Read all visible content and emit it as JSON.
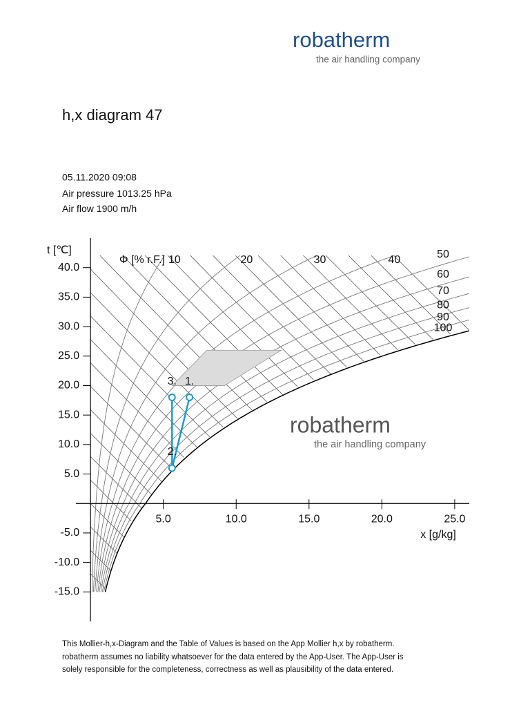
{
  "header": {
    "logo": "robatherm",
    "tagline": "the air handling company"
  },
  "document": {
    "title": "h,x diagram 47",
    "date": "05.11.2020 09:08",
    "air_pressure": {
      "label": "Air pressure",
      "value": 1013.25,
      "unit": "hPa"
    },
    "air_flow": {
      "label": "Air flow",
      "value": 1900,
      "unit": "m/h"
    }
  },
  "chart_data": {
    "type": "mollier",
    "y_label": "t [℃]",
    "x_label": "x [g/kg]",
    "rh_label": "Φ [% r.F.]",
    "rh_values": [
      10,
      20,
      30,
      40,
      50,
      60,
      70,
      80,
      90,
      100
    ],
    "xlim": [
      -1,
      26
    ],
    "ylim": [
      -20,
      45
    ],
    "xticks": [
      {
        "value": 5,
        "label": "5.0"
      },
      {
        "value": 10,
        "label": "10.0"
      },
      {
        "value": 15,
        "label": "15.0"
      },
      {
        "value": 20,
        "label": "20.0"
      },
      {
        "value": 25,
        "label": "25.0"
      }
    ],
    "yticks": [
      {
        "value": 40,
        "label": "40.0"
      },
      {
        "value": 35,
        "label": "35.0"
      },
      {
        "value": 30,
        "label": "30.0"
      },
      {
        "value": 25,
        "label": "25.0"
      },
      {
        "value": 20,
        "label": "20.0"
      },
      {
        "value": 15,
        "label": "15.0"
      },
      {
        "value": 10,
        "label": "10.0"
      },
      {
        "value": 5,
        "label": "5.0"
      },
      {
        "value": -5,
        "label": "-5.0"
      },
      {
        "value": -10,
        "label": "-10.0"
      },
      {
        "value": -15,
        "label": "-15.0"
      }
    ],
    "comfort_zone": {
      "x": [
        5.6,
        8.0,
        13.1,
        9.2
      ],
      "t": [
        20,
        26,
        26,
        20
      ],
      "color": "#dcdcdc"
    },
    "process": {
      "labels": [
        "1.",
        "2.",
        "3."
      ],
      "x": [
        6.8,
        5.6,
        5.6
      ],
      "t": [
        18,
        6,
        18
      ],
      "color": "#1b9bd7"
    }
  },
  "watermark": {
    "logo": "robatherm",
    "tagline": "the air handling company"
  },
  "footer": {
    "lines": [
      "This Mollier-h,x-Diagram and the Table of Values is based on the App Mollier h,x by robatherm.",
      "robatherm assumes no liability whatsoever for the data entered by the App-User. The App-User is",
      "solely responsible for the completeness, correctness as well as plausibility of the data entered."
    ]
  }
}
